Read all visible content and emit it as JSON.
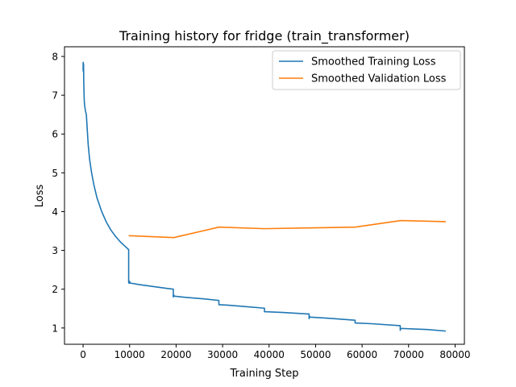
{
  "chart_data": {
    "type": "line",
    "title": "Training history for fridge (train_transformer)",
    "xlabel": "Training Step",
    "ylabel": "Loss",
    "xlim": [
      -4000,
      82000
    ],
    "ylim": [
      0.58,
      8.25
    ],
    "xticks": [
      0,
      10000,
      20000,
      30000,
      40000,
      50000,
      60000,
      70000,
      80000
    ],
    "yticks": [
      1,
      2,
      3,
      4,
      5,
      6,
      7,
      8
    ],
    "legend": "top-right",
    "grid": false,
    "series": [
      {
        "name": "Smoothed Training Loss",
        "color": "#1f77b4",
        "points": [
          [
            0,
            7.65
          ],
          [
            20,
            7.85
          ],
          [
            40,
            7.62
          ],
          [
            60,
            7.82
          ],
          [
            80,
            7.6
          ],
          [
            100,
            7.8
          ],
          [
            150,
            7.3
          ],
          [
            250,
            6.85
          ],
          [
            350,
            6.72
          ],
          [
            500,
            6.6
          ],
          [
            700,
            6.5
          ],
          [
            900,
            6.1
          ],
          [
            1100,
            5.72
          ],
          [
            1400,
            5.35
          ],
          [
            1800,
            5.02
          ],
          [
            2300,
            4.7
          ],
          [
            3000,
            4.35
          ],
          [
            4000,
            4.0
          ],
          [
            5000,
            3.73
          ],
          [
            6000,
            3.52
          ],
          [
            7000,
            3.36
          ],
          [
            8000,
            3.22
          ],
          [
            9000,
            3.11
          ],
          [
            9800,
            3.02
          ],
          [
            9800,
            2.18
          ],
          [
            9900,
            2.15
          ],
          [
            10000,
            2.2
          ],
          [
            10100,
            2.16
          ],
          [
            12000,
            2.12
          ],
          [
            15000,
            2.07
          ],
          [
            18000,
            2.02
          ],
          [
            19400,
            2.0
          ],
          [
            19400,
            1.8
          ],
          [
            19500,
            1.85
          ],
          [
            19600,
            1.82
          ],
          [
            22000,
            1.79
          ],
          [
            26000,
            1.75
          ],
          [
            29200,
            1.71
          ],
          [
            29200,
            1.6
          ],
          [
            31000,
            1.59
          ],
          [
            35000,
            1.55
          ],
          [
            39000,
            1.51
          ],
          [
            39000,
            1.42
          ],
          [
            43000,
            1.4
          ],
          [
            48600,
            1.36
          ],
          [
            48600,
            1.24
          ],
          [
            48700,
            1.3
          ],
          [
            48800,
            1.28
          ],
          [
            53000,
            1.25
          ],
          [
            58500,
            1.2
          ],
          [
            58500,
            1.13
          ],
          [
            62000,
            1.11
          ],
          [
            68200,
            1.06
          ],
          [
            68200,
            0.94
          ],
          [
            68300,
            0.99
          ],
          [
            70000,
            0.98
          ],
          [
            74000,
            0.96
          ],
          [
            78000,
            0.92
          ]
        ]
      },
      {
        "name": "Smoothed Validation Loss",
        "color": "#ff7f0e",
        "points": [
          [
            9800,
            3.38
          ],
          [
            19500,
            3.33
          ],
          [
            29200,
            3.6
          ],
          [
            39000,
            3.56
          ],
          [
            48800,
            3.58
          ],
          [
            58500,
            3.6
          ],
          [
            68300,
            3.77
          ],
          [
            78000,
            3.74
          ]
        ]
      }
    ]
  }
}
